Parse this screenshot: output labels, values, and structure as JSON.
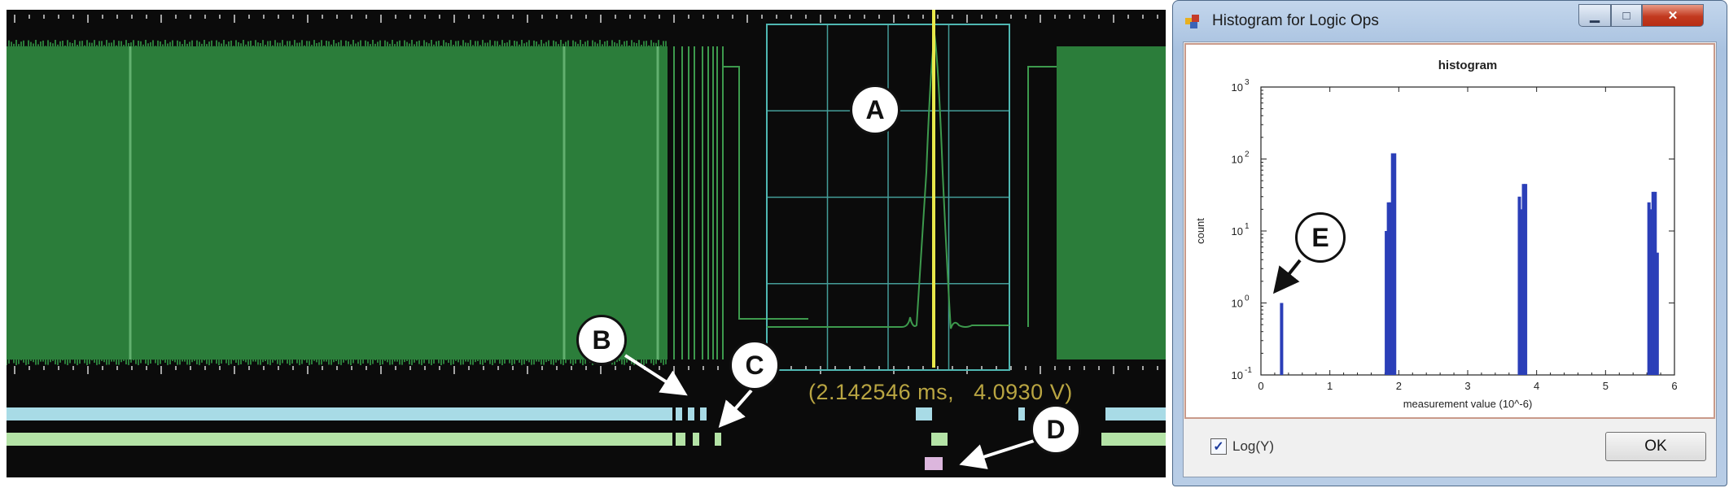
{
  "scope": {
    "readout": "(2.142546 ms,   4.0930 V)",
    "colors": {
      "trace": "#2b7d3a",
      "grid": "#4fb7b2",
      "cursor": "#e8e84a",
      "track1": "#a8dbe6",
      "track2": "#b4e3a6",
      "track3": "#dcb6dd"
    }
  },
  "markers": {
    "a": "A",
    "b": "B",
    "c": "C",
    "d": "D",
    "e": "E"
  },
  "dialog": {
    "title": "Histogram for Logic Ops",
    "close_icon": "✕",
    "checkbox_label": "Log(Y)",
    "checkbox_checked": true,
    "ok_label": "OK"
  },
  "chart_data": {
    "type": "bar",
    "title": "histogram",
    "xlabel": "measurement value (10^-6)",
    "ylabel": "count",
    "xlim": [
      0,
      6
    ],
    "ylim": [
      0.1,
      1000
    ],
    "log_y": true,
    "x_ticks": [
      "0",
      "1",
      "2",
      "3",
      "4",
      "5",
      "6"
    ],
    "y_ticks": [
      "10^-1",
      "10^0",
      "10^1",
      "10^2",
      "10^3"
    ],
    "bar_color": "#2b3fb8",
    "bars": [
      {
        "x": 0.3,
        "count": 1
      },
      {
        "x": 1.82,
        "count": 10
      },
      {
        "x": 1.85,
        "count": 25
      },
      {
        "x": 1.88,
        "count": 25
      },
      {
        "x": 1.91,
        "count": 120
      },
      {
        "x": 1.94,
        "count": 120
      },
      {
        "x": 3.75,
        "count": 30
      },
      {
        "x": 3.78,
        "count": 20
      },
      {
        "x": 3.81,
        "count": 45
      },
      {
        "x": 3.84,
        "count": 45
      },
      {
        "x": 5.63,
        "count": 25
      },
      {
        "x": 5.66,
        "count": 20
      },
      {
        "x": 5.69,
        "count": 35
      },
      {
        "x": 5.72,
        "count": 35
      },
      {
        "x": 5.75,
        "count": 5
      }
    ]
  }
}
